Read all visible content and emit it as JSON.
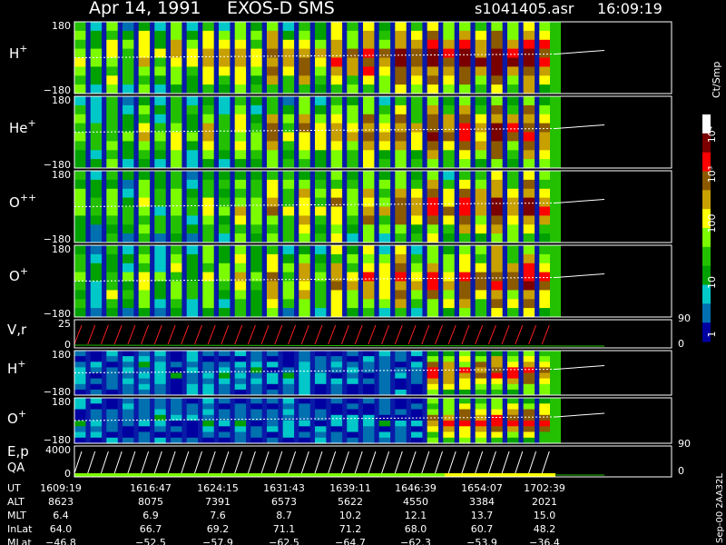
{
  "header": {
    "date": "Apr 14, 1991",
    "mission": "EXOS-D SMS",
    "file": "s1041405.asr",
    "time": "16:09:19"
  },
  "colorbar": {
    "unit_label": "Ct/Smp",
    "tick_labels": [
      "10⁴",
      "10³",
      "100",
      "10",
      "1"
    ],
    "colors": [
      "#ffffff",
      "#7a0000",
      "#ff0000",
      "#8b5a00",
      "#c8a000",
      "#ffff00",
      "#7cfc00",
      "#22c000",
      "#00a000",
      "#00c8c8",
      "#0070b0",
      "#0000a0"
    ]
  },
  "side_labels": {
    "v_right": "90",
    "v_right_zero": "0",
    "e_right": "90",
    "e_right_zero": "0",
    "version": "Sep-00  2AA32L"
  },
  "chart_data": [
    {
      "type": "heatmap",
      "panel": "H+",
      "label": "H",
      "sup": "+",
      "y_top": "180",
      "y_bot": "−180"
    },
    {
      "type": "heatmap",
      "panel": "He+",
      "label": "He",
      "sup": "+",
      "y_top": "180",
      "y_bot": "−180"
    },
    {
      "type": "heatmap",
      "panel": "O++",
      "label": "O",
      "sup": "++",
      "y_top": "180",
      "y_bot": "−180"
    },
    {
      "type": "heatmap",
      "panel": "O+",
      "label": "O",
      "sup": "+",
      "y_top": "180",
      "y_bot": "−180"
    },
    {
      "type": "line",
      "panel": "V,r",
      "label": "V,r",
      "sup": "",
      "y_top": "25",
      "y_bot": "0"
    },
    {
      "type": "heatmap",
      "panel": "H+ (2)",
      "label": "H",
      "sup": "+",
      "y_top": "180",
      "y_bot": "−180"
    },
    {
      "type": "heatmap",
      "panel": "O+ (2)",
      "label": "O",
      "sup": "+",
      "y_top": "180",
      "y_bot": "−180"
    },
    {
      "type": "line",
      "panel": "E,p QA",
      "label": "E,p",
      "label2": "QA",
      "sup": "",
      "y_top": "4000",
      "y_bot": "0"
    }
  ],
  "ephemeris": {
    "rows": [
      {
        "name": "UT",
        "values": [
          "1609:19",
          "1616:47",
          "1624:15",
          "1631:43",
          "1639:11",
          "1646:39",
          "1654:07",
          "1702:39"
        ]
      },
      {
        "name": "ALT",
        "values": [
          "8623",
          "8075",
          "7391",
          "6573",
          "5622",
          "4550",
          "3384",
          "2021"
        ]
      },
      {
        "name": "MLT",
        "values": [
          "6.4",
          "6.9",
          "7.6",
          "8.7",
          "10.2",
          "12.1",
          "13.7",
          "15.0"
        ]
      },
      {
        "name": "InLat",
        "values": [
          "64.0",
          "66.7",
          "69.2",
          "71.1",
          "71.2",
          "68.0",
          "60.7",
          "48.2"
        ]
      },
      {
        "name": "MLat",
        "values": [
          "−46.8",
          "−52.5",
          "−57.9",
          "−62.5",
          "−64.7",
          "−62.3",
          "−53.9",
          "−36.4"
        ]
      }
    ]
  }
}
